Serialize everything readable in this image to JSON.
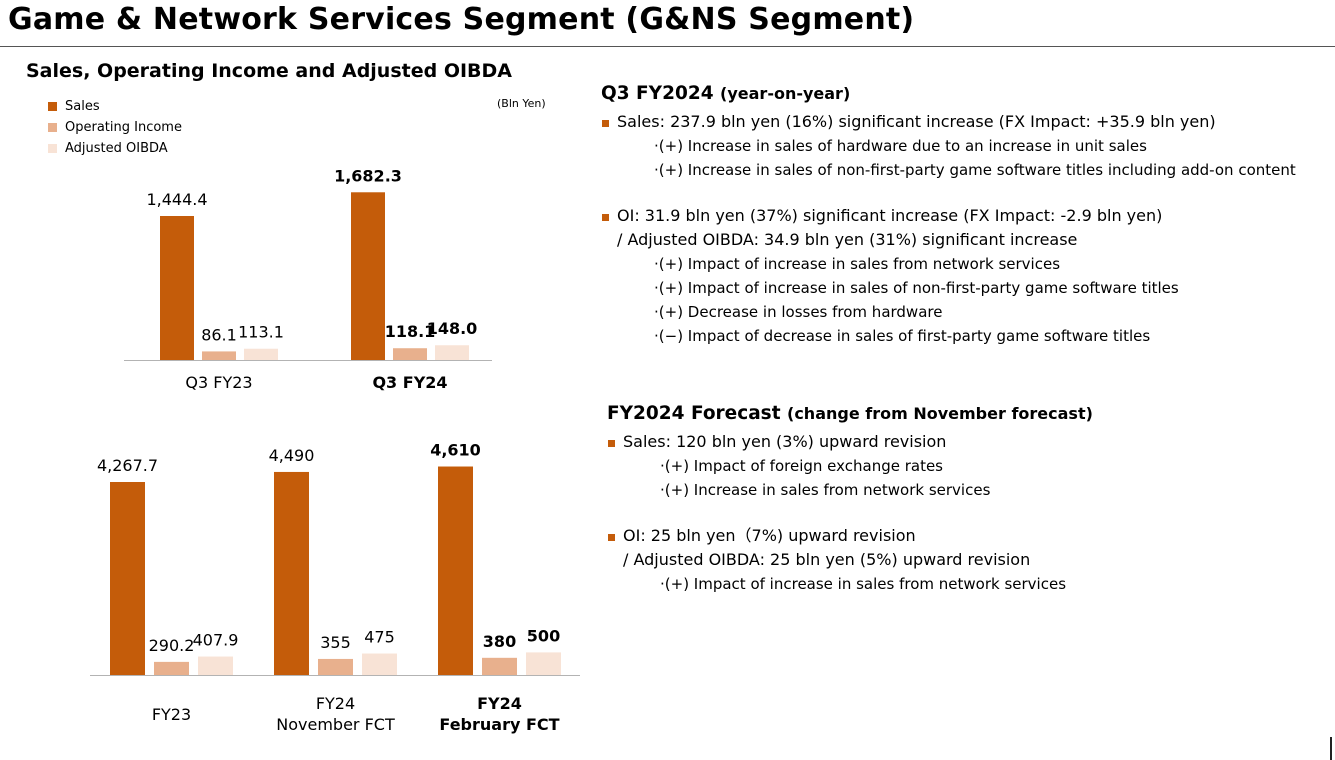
{
  "page": {
    "title": "Game & Network Services Segment (G&NS Segment)"
  },
  "chart_title": "Sales, Operating Income and Adjusted OIBDA",
  "unit_label": "(Bln Yen)",
  "legend": [
    {
      "label": "Sales",
      "color": "#c45c0a"
    },
    {
      "label": "Operating Income",
      "color": "#e8b08d"
    },
    {
      "label": "Adjusted OIBDA",
      "color": "#f8e3d6"
    }
  ],
  "chart_data": [
    {
      "type": "bar",
      "categories": [
        "Q3 FY23",
        "Q3 FY24"
      ],
      "category_bold": [
        false,
        true
      ],
      "series": [
        {
          "name": "Sales",
          "values": [
            1444.4,
            1682.3
          ],
          "labels": [
            "1,444.4",
            "1,682.3"
          ]
        },
        {
          "name": "Operating Income",
          "values": [
            86.1,
            118.1
          ],
          "labels": [
            "86.1",
            "118.1"
          ]
        },
        {
          "name": "Adjusted OIBDA",
          "values": [
            113.1,
            148.0
          ],
          "labels": [
            "113.1",
            "148.0"
          ]
        }
      ],
      "unit": "Bln Yen",
      "legend_position": "top-left"
    },
    {
      "type": "bar",
      "categories": [
        [
          "FY23"
        ],
        [
          "FY24",
          "November FCT"
        ],
        [
          "FY24",
          "February FCT"
        ]
      ],
      "category_bold": [
        false,
        false,
        true
      ],
      "series": [
        {
          "name": "Sales",
          "values": [
            4267.7,
            4490,
            4610
          ],
          "labels": [
            "4,267.7",
            "4,490",
            "4,610"
          ]
        },
        {
          "name": "Operating Income",
          "values": [
            290.2,
            355,
            380
          ],
          "labels": [
            "290.2",
            "355",
            "380"
          ]
        },
        {
          "name": "Adjusted OIBDA",
          "values": [
            407.9,
            475,
            500
          ],
          "labels": [
            "407.9",
            "475",
            "500"
          ]
        }
      ],
      "unit": "Bln Yen"
    }
  ],
  "q3": {
    "title": "Q3 FY2024",
    "subtitle": "(year-on-year)",
    "sales": {
      "text": "Sales: 237.9 bln yen (16%) significant increase (FX Impact: +35.9 bln yen)",
      "details": [
        "·(+) Increase in sales of hardware due to an increase in unit sales",
        "·(+) Increase in sales of non-first-party game software titles including add-on content"
      ]
    },
    "oi": {
      "text": "OI: 31.9 bln yen (37%) significant increase (FX Impact: -2.9 bln yen)",
      "text2": "/ Adjusted OIBDA: 34.9 bln yen (31%) significant increase",
      "details": [
        "·(+) Impact of increase in sales from network services",
        "·(+) Impact of increase in sales of non-first-party game software titles",
        "·(+) Decrease in losses from hardware",
        "·(−) Impact of decrease in sales of first-party game software titles"
      ]
    }
  },
  "forecast": {
    "title": "FY2024 Forecast",
    "subtitle": "(change from November forecast)",
    "sales": {
      "text": "Sales: 120 bln yen (3%) upward revision",
      "details": [
        "·(+) Impact of foreign exchange rates",
        "·(+) Increase in sales from network services"
      ]
    },
    "oi": {
      "text": "OI: 25 bln yen（7%) upward revision",
      "text2": "/ Adjusted OIBDA: 25 bln yen (5%) upward revision",
      "details": [
        "·(+) Impact of increase in sales from network services"
      ]
    }
  }
}
